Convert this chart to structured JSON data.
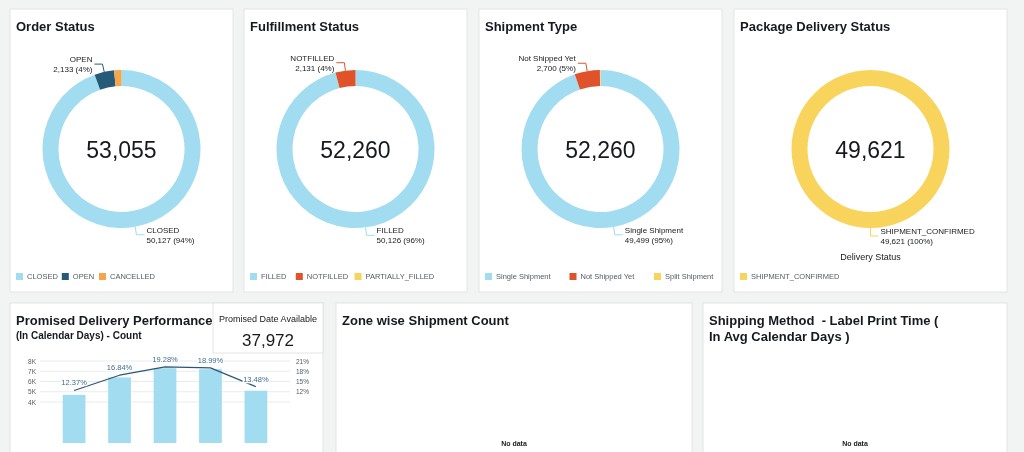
{
  "chart_data": [
    {
      "type": "donut",
      "title": "Order Status",
      "categories": [
        "CLOSED",
        "OPEN",
        "CANCELLED"
      ],
      "values": [
        50127,
        2133,
        795
      ],
      "colors": [
        "#a1dcf0",
        "#255a78",
        "#f5a54a"
      ],
      "value_labels": [
        "50,127 (94%)",
        "2,133 (4%)",
        null
      ],
      "annotations": [
        "53,055"
      ],
      "legend": "bottom"
    },
    {
      "type": "donut",
      "title": "Fulfillment Status",
      "categories": [
        "FILLED",
        "NOTFILLED",
        "PARTIALLY_FILLED"
      ],
      "values": [
        50126,
        2131,
        null
      ],
      "colors": [
        "#a1dcf0",
        "#e0522a",
        "#f9d45c"
      ],
      "value_labels": [
        "50,126 (96%)",
        "2,131 (4%)",
        null
      ],
      "annotations": [
        "52,260"
      ],
      "legend": "bottom"
    },
    {
      "type": "donut",
      "title": "Shipment Type",
      "categories": [
        "Single Shipment",
        "Not Shipped Yet",
        "Split Shipment"
      ],
      "values": [
        49499,
        2700,
        61
      ],
      "colors": [
        "#a1dcf0",
        "#e0522a",
        "#f9d45c"
      ],
      "value_labels": [
        "49,499 (95%)",
        "2,700 (5%)",
        null
      ],
      "annotations": [
        "52,260"
      ],
      "legend": "bottom"
    },
    {
      "type": "donut",
      "title": "Package Delivery Status",
      "categories": [
        "SHIPMENT_CONFIRMED"
      ],
      "values": [
        49621
      ],
      "colors": [
        "#f9d45c"
      ],
      "value_labels": [
        "49,621 (100%)"
      ],
      "annotations": [
        "49,621"
      ],
      "xlabel": "Delivery Status",
      "legend": "bottom"
    },
    {
      "type": "bar",
      "title": "Promised Delivery Performance",
      "subtitle": "(In Calendar Days) - Count",
      "categories": [
        null,
        null,
        null,
        null,
        null
      ],
      "series": [
        {
          "type": "bar",
          "color": "#a1dcf0",
          "values": [
            4700,
            6400,
            7300,
            7200,
            5100
          ]
        },
        {
          "type": "line",
          "axis": "y2",
          "color": "#2b5577",
          "values": [
            12.37,
            16.84,
            19.28,
            18.99,
            13.48
          ],
          "value_labels": [
            "12.37%",
            "16.84%",
            "19.28%",
            "18.99%",
            "13.48%"
          ]
        }
      ],
      "ylim": [
        0,
        8000
      ],
      "yticks": [
        {
          "value": 4000,
          "label": "4K"
        },
        {
          "value": 5000,
          "label": "5K"
        },
        {
          "value": 6000,
          "label": "6K"
        },
        {
          "value": 7000,
          "label": "7K"
        },
        {
          "value": 8000,
          "label": "8K"
        }
      ],
      "y2lim": [
        -3,
        21
      ],
      "y2ticks": [
        {
          "value": 12,
          "label": "12%"
        },
        {
          "value": 15,
          "label": "15%"
        },
        {
          "value": 18,
          "label": "18%"
        },
        {
          "value": 21,
          "label": "21%"
        }
      ],
      "grid": "y"
    },
    {
      "type": "other",
      "title": "Promised Date Available",
      "annotations": [
        "37,972"
      ]
    },
    {
      "type": "other",
      "title": "Zone wise Shipment Count",
      "annotations": [
        "No data"
      ]
    },
    {
      "type": "other",
      "title": "Shipping Method  - Label Print Time ( In Avg Calendar Days )",
      "annotations": [
        "No data"
      ]
    }
  ]
}
